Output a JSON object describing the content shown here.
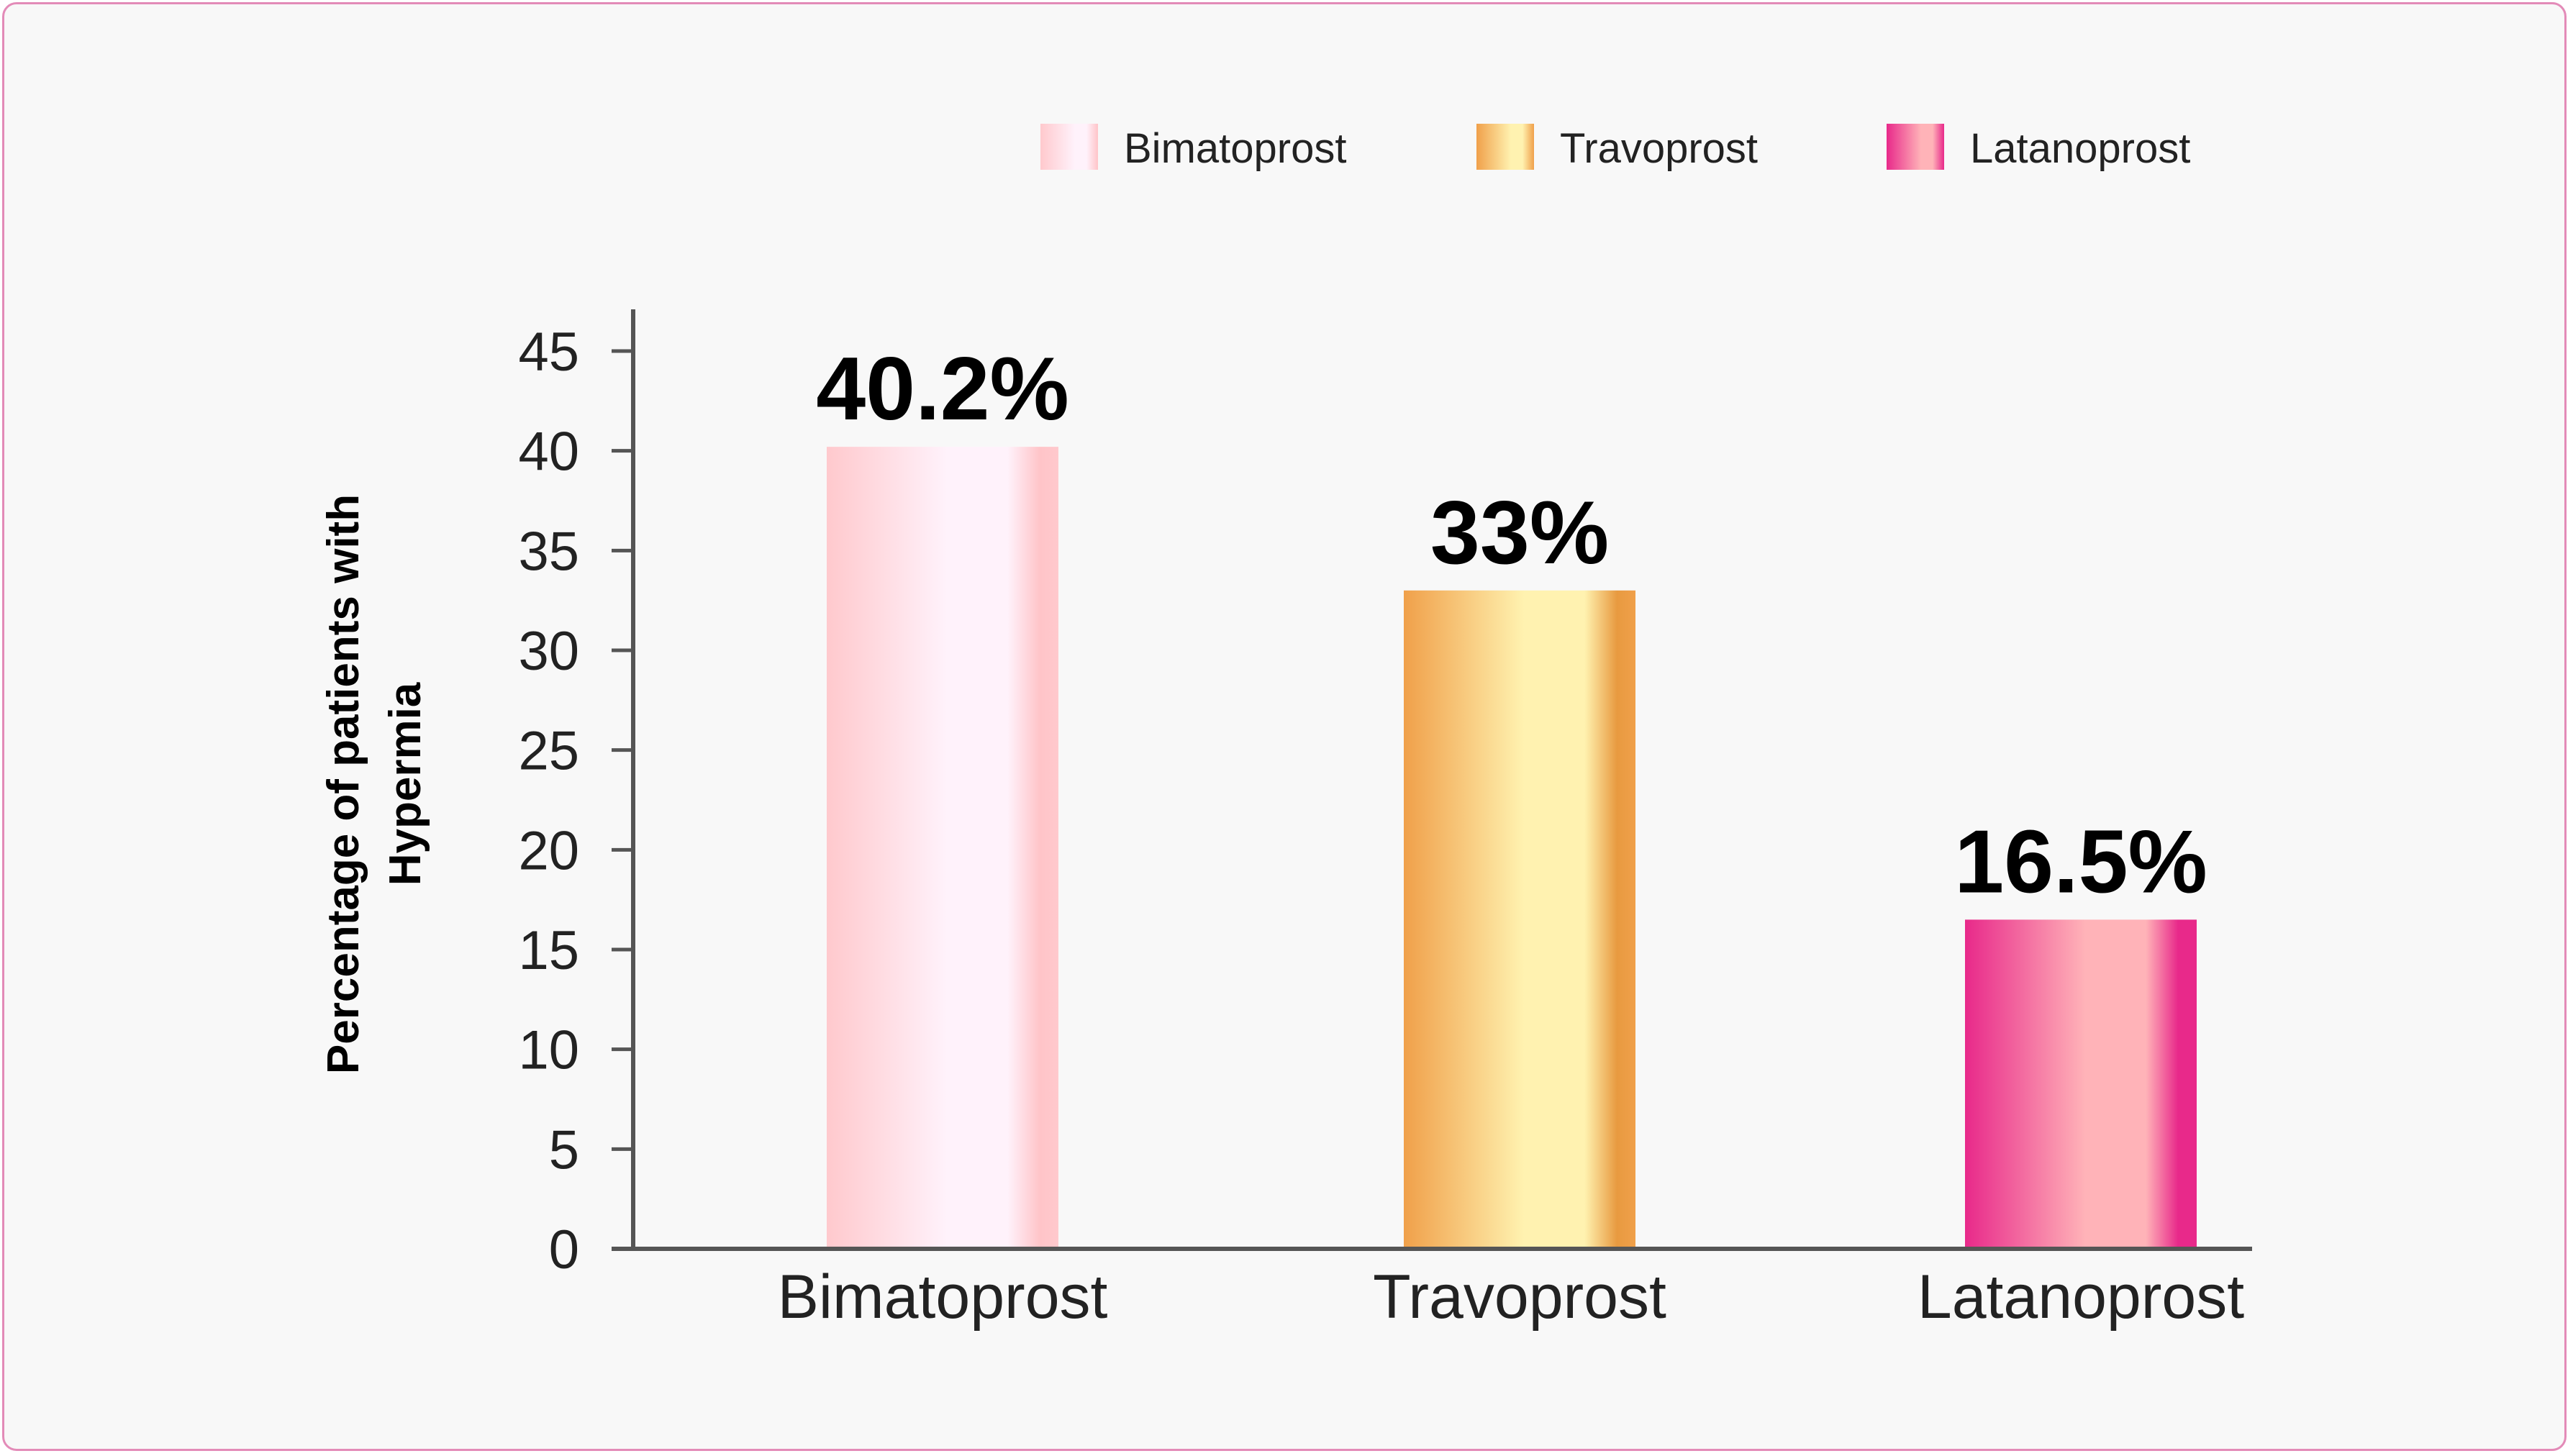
{
  "chart_data": {
    "type": "bar",
    "categories": [
      "Bimatoprost",
      "Travoprost",
      "Latanoprost"
    ],
    "values": [
      40.2,
      33,
      16.5
    ],
    "data_labels": [
      "40.2%",
      "33%",
      "16.5%"
    ],
    "ylabel_lines": [
      "Percentage of patients with",
      "Hypermia"
    ],
    "ylim": [
      0,
      45
    ],
    "yticks": [
      0,
      5,
      10,
      15,
      20,
      25,
      30,
      35,
      40,
      45
    ],
    "grid": false,
    "legend_position": "top-right",
    "legend": [
      {
        "name": "Bimatoprost",
        "colors": [
          "#ffc9cd",
          "#fff2fb",
          "#ffc4c8"
        ]
      },
      {
        "name": "Travoprost",
        "colors": [
          "#f0a04a",
          "#fff2b0",
          "#f0a04a"
        ]
      },
      {
        "name": "Latanoprost",
        "colors": [
          "#e8298a",
          "#ffb3b8",
          "#e8298a"
        ]
      }
    ],
    "bar_colors": [
      {
        "start": "#ffc9cd",
        "mid": "#fff2fb",
        "end": "#ffc4c8"
      },
      {
        "start": "#f0a04a",
        "mid": "#fff2b0",
        "end": "#e89a40"
      },
      {
        "start": "#e8298a",
        "mid": "#ffb3b8",
        "end": "#e8298a"
      }
    ],
    "frame_color": "#e38bb8",
    "background": "#f8f8f8"
  }
}
